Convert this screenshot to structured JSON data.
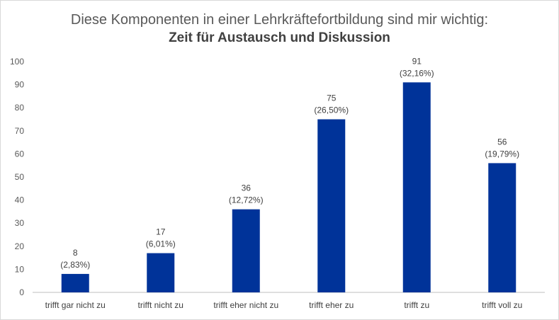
{
  "chart_data": {
    "type": "bar",
    "title": "Diese Komponenten in einer Lehrkräftefortbildung sind mir wichtig:",
    "subtitle": "Zeit für Austausch und Diskussion",
    "categories": [
      "trifft gar nicht zu",
      "trifft nicht zu",
      "trifft eher nicht zu",
      "trifft eher zu",
      "trifft zu",
      "trifft voll zu"
    ],
    "values": [
      8,
      17,
      36,
      75,
      91,
      56
    ],
    "percent_labels": [
      "(2,83%)",
      "(6,01%)",
      "(12,72%)",
      "(26,50%)",
      "(32,16%)",
      "(19,79%)"
    ],
    "ylim": [
      0,
      100
    ],
    "yticks": [
      0,
      10,
      20,
      30,
      40,
      50,
      60,
      70,
      80,
      90,
      100
    ],
    "grid": false,
    "legend": "none",
    "bar_color": "#003399",
    "axis_color": "#bfbfbf"
  }
}
